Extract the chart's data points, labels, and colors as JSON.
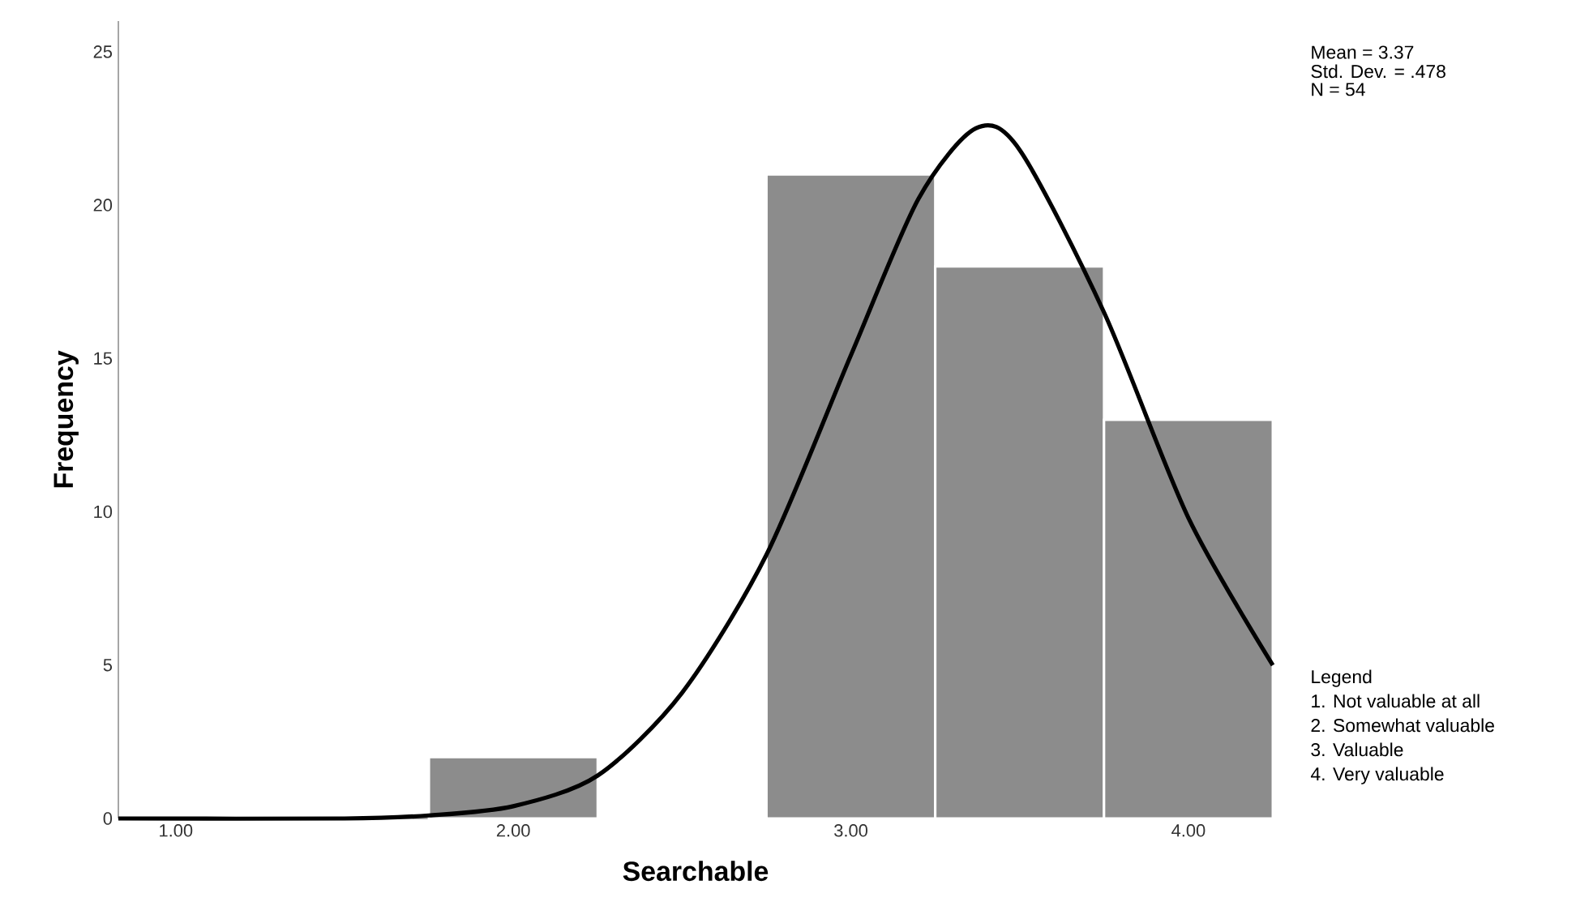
{
  "chart_data": {
    "type": "histogram",
    "xlabel": "Searchable",
    "ylabel": "Frequency",
    "bins": [
      1.75,
      2.25,
      2.75,
      3.25,
      3.75,
      4.25
    ],
    "values": [
      2,
      0,
      21,
      18,
      13
    ],
    "color": "#8c8c8c",
    "series": [
      {
        "type": "line",
        "color": "#000000",
        "x": [
          0.83,
          1.5,
          1.75,
          2.0,
          2.25,
          2.5,
          2.75,
          3.0,
          3.2,
          3.37,
          3.5,
          3.75,
          4.0,
          4.25
        ],
        "values": [
          0,
          0,
          0.1,
          0.4,
          1.4,
          4.1,
          8.6,
          15.1,
          20.2,
          22.5,
          21.8,
          16.5,
          9.8,
          5.0
        ]
      }
    ],
    "xlim": [
      0.83,
      4.25
    ],
    "ylim": [
      0,
      26
    ],
    "xticks": [
      {
        "value": 1,
        "label": "1.00"
      },
      {
        "value": 2,
        "label": "2.00"
      },
      {
        "value": 3,
        "label": "3.00"
      },
      {
        "value": 4,
        "label": "4.00"
      }
    ],
    "yticks": [
      0,
      5,
      10,
      15,
      20,
      25
    ],
    "annotations": [
      "Mean = 3.37",
      "Std. Dev. = .478",
      "N = 54",
      "Legend",
      "1.     Not valuable at all",
      "2.     Somewhat valuable",
      "3.     Valuable",
      "4.     Very valuable"
    ]
  }
}
